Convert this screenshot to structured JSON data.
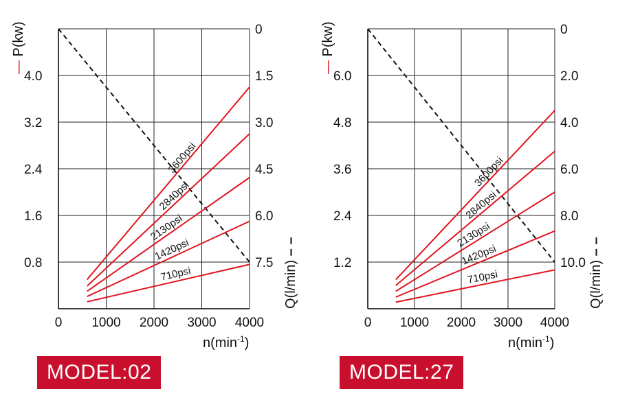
{
  "chart_data": [
    {
      "type": "line",
      "model_label": "MODEL:02",
      "x_label_main": "n(min",
      "x_label_sup": "-1",
      "x_label_tail": ")",
      "y_left_label": "P(kw)",
      "y_right_label": "Q(l/min)",
      "y_left_legend": "—",
      "y_right_legend": "– –",
      "x_ticks": [
        "0",
        "1000",
        "2000",
        "3000",
        "4000"
      ],
      "xlim": [
        0,
        4000
      ],
      "y_left_ticks": [
        {
          "value": 0.8,
          "label": "0.8"
        },
        {
          "value": 1.6,
          "label": "1.6"
        },
        {
          "value": 2.4,
          "label": "2.4"
        },
        {
          "value": 3.2,
          "label": "3.2"
        },
        {
          "value": 4.0,
          "label": "4.0"
        }
      ],
      "y_left_lim": [
        0,
        4.8
      ],
      "y_right_ticks": [
        {
          "value": 0,
          "label": "0"
        },
        {
          "value": 1.5,
          "label": "1.5"
        },
        {
          "value": 3.0,
          "label": "3.0"
        },
        {
          "value": 4.5,
          "label": "4.5"
        },
        {
          "value": 6.0,
          "label": "6.0"
        },
        {
          "value": 7.5,
          "label": "7.5"
        }
      ],
      "y_right_lim": [
        0,
        9.0
      ],
      "flow_series": {
        "x": [
          0,
          4000
        ],
        "values": [
          0,
          7.5
        ]
      },
      "series": [
        {
          "name": "710psi",
          "x": [
            600,
            4000
          ],
          "values": [
            0.12,
            0.76
          ]
        },
        {
          "name": "1420psi",
          "x": [
            600,
            4000
          ],
          "values": [
            0.21,
            1.5
          ]
        },
        {
          "name": "2130psi",
          "x": [
            600,
            4000
          ],
          "values": [
            0.3,
            2.25
          ]
        },
        {
          "name": "2840psi",
          "x": [
            600,
            4000
          ],
          "values": [
            0.39,
            3.0
          ]
        },
        {
          "name": "3600psi",
          "x": [
            600,
            4000
          ],
          "values": [
            0.5,
            3.8
          ]
        }
      ],
      "grid": true,
      "colors": {
        "power": "#e0141e",
        "flow": "#111111",
        "grid": "#222222"
      }
    },
    {
      "type": "line",
      "model_label": "MODEL:27",
      "x_label_main": "n(min",
      "x_label_sup": "-1",
      "x_label_tail": ")",
      "y_left_label": "P(kw)",
      "y_right_label": "Q(l/min)",
      "y_left_legend": "—",
      "y_right_legend": "– –",
      "x_ticks": [
        "0",
        "1000",
        "2000",
        "3000",
        "4000"
      ],
      "xlim": [
        0,
        4000
      ],
      "y_left_ticks": [
        {
          "value": 1.2,
          "label": "1.2"
        },
        {
          "value": 2.4,
          "label": "2.4"
        },
        {
          "value": 3.6,
          "label": "3.6"
        },
        {
          "value": 4.8,
          "label": "4.8"
        },
        {
          "value": 6.0,
          "label": "6.0"
        }
      ],
      "y_left_lim": [
        0,
        7.2
      ],
      "y_right_ticks": [
        {
          "value": 0,
          "label": "0"
        },
        {
          "value": 2.0,
          "label": "2.0"
        },
        {
          "value": 4.0,
          "label": "4.0"
        },
        {
          "value": 6.0,
          "label": "6.0"
        },
        {
          "value": 8.0,
          "label": "8.0"
        },
        {
          "value": 10.0,
          "label": "10.0"
        }
      ],
      "y_right_lim": [
        0,
        12.0
      ],
      "flow_series": {
        "x": [
          0,
          4000
        ],
        "values": [
          0,
          10.0
        ]
      },
      "series": [
        {
          "name": "710psi",
          "x": [
            600,
            4000
          ],
          "values": [
            0.17,
            1.0
          ]
        },
        {
          "name": "1420psi",
          "x": [
            600,
            4000
          ],
          "values": [
            0.3,
            2.0
          ]
        },
        {
          "name": "2130psi",
          "x": [
            600,
            4000
          ],
          "values": [
            0.45,
            3.0
          ]
        },
        {
          "name": "2840psi",
          "x": [
            600,
            4000
          ],
          "values": [
            0.6,
            4.05
          ]
        },
        {
          "name": "3600psi",
          "x": [
            600,
            4000
          ],
          "values": [
            0.75,
            5.1
          ]
        }
      ],
      "grid": true,
      "colors": {
        "power": "#e0141e",
        "flow": "#111111",
        "grid": "#222222"
      }
    }
  ]
}
